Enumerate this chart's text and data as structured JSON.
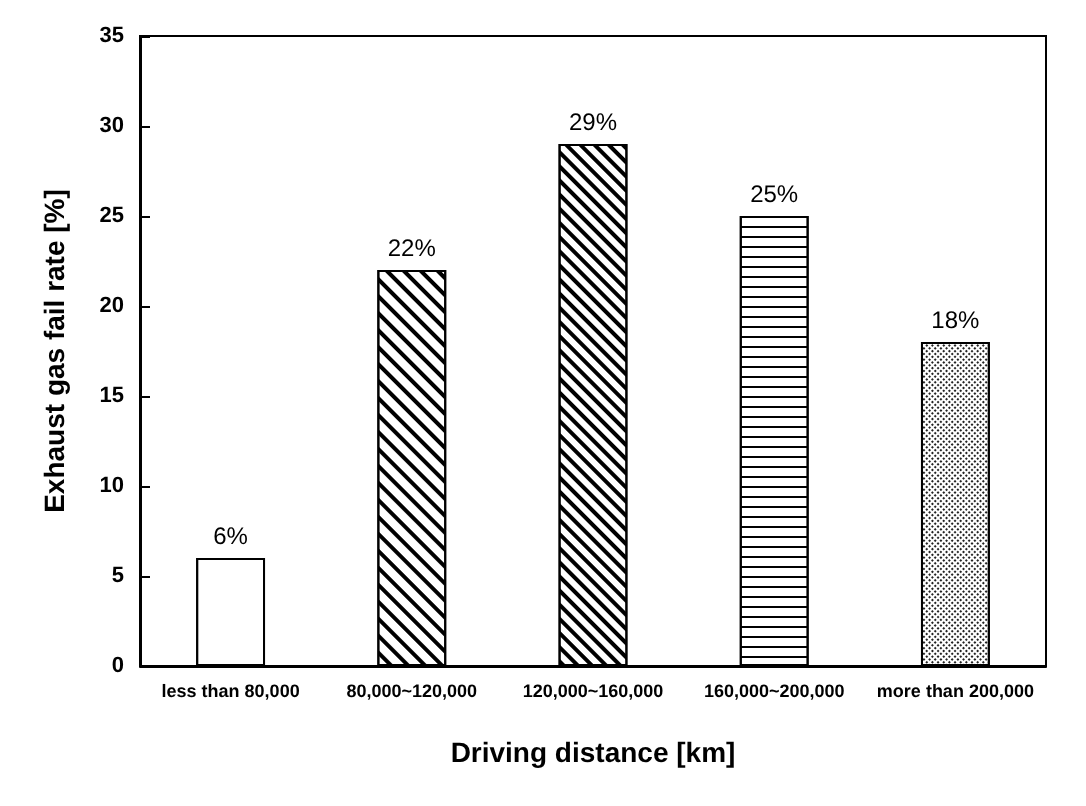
{
  "chart_data": {
    "type": "bar",
    "xlabel": "Driving distance [km]",
    "ylabel": "Exhaust gas fail rate [%]",
    "categories": [
      "less than 80,000",
      "80,000~120,000",
      "120,000~160,000",
      "160,000~200,000",
      "more than 200,000"
    ],
    "values": [
      6,
      22,
      29,
      25,
      18
    ],
    "value_labels": [
      "6%",
      "22%",
      "29%",
      "25%",
      "18%"
    ],
    "colors": [
      "#ffffff",
      "#ffffff",
      "#ffffff",
      "#ffffff",
      "#ffffff"
    ],
    "ylim": [
      0,
      35
    ],
    "yticks": [
      0,
      5,
      10,
      15,
      20,
      25,
      30,
      35
    ]
  }
}
